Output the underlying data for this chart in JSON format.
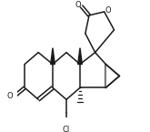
{
  "bg_color": "#ffffff",
  "line_color": "#1a1a1a",
  "gray_color": "#999999",
  "bond_lw": 1.1,
  "figsize": [
    1.65,
    1.45
  ],
  "dpi": 100,
  "xlim": [
    0.0,
    1.0
  ],
  "ylim": [
    0.0,
    1.0
  ]
}
